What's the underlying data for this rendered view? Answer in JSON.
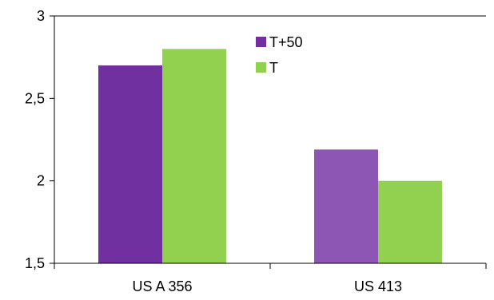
{
  "chart_data": {
    "type": "bar",
    "categories": [
      "US A 356",
      "US 413"
    ],
    "series": [
      {
        "name": "T+50",
        "values": [
          2.7,
          2.19
        ],
        "colors": [
          "#7030A0",
          "#8D56B4"
        ]
      },
      {
        "name": "T",
        "values": [
          2.8,
          2.0
        ],
        "colors": [
          "#92D050",
          "#92D050"
        ]
      }
    ],
    "ylim": [
      1.5,
      3
    ],
    "yticks": [
      1.5,
      2,
      2.5,
      3
    ],
    "ytick_labels": [
      "1,5",
      "2",
      "2,5",
      "3"
    ],
    "grid": false,
    "legend_position": "top-center"
  }
}
